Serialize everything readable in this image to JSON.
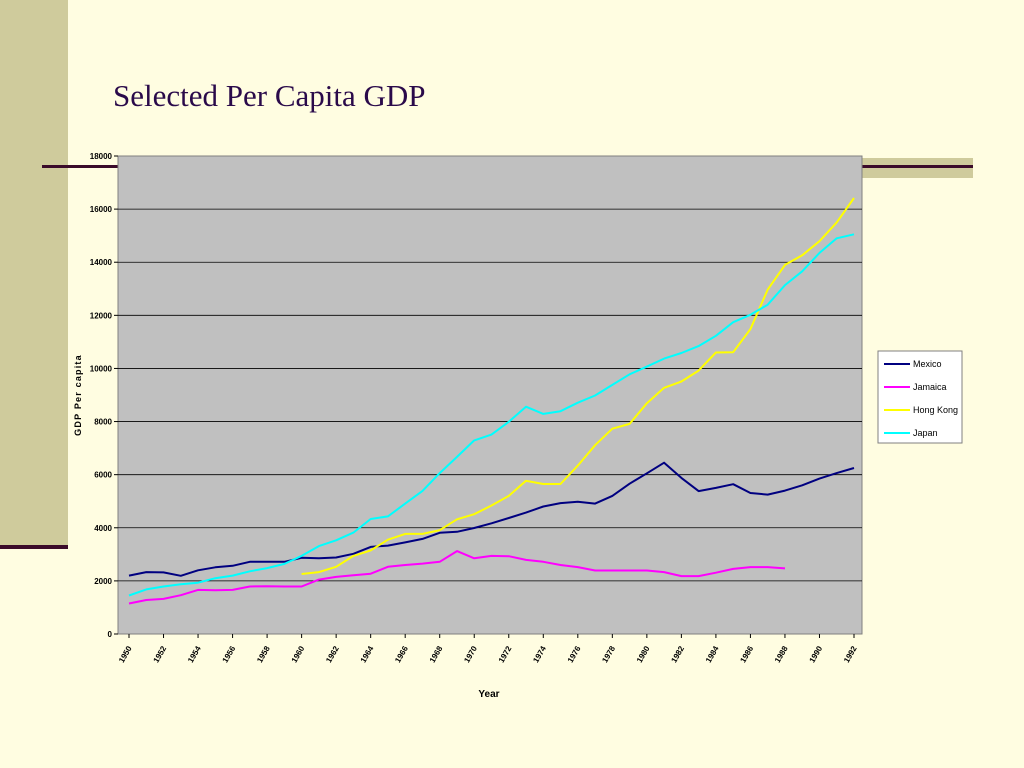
{
  "slide": {
    "title": "Selected Per Capita GDP"
  },
  "chart_data": {
    "type": "line",
    "title": "",
    "xlabel": "Year",
    "ylabel": "GDP Per capita",
    "ylim": [
      0,
      18000
    ],
    "yticks": [
      "0",
      "2000",
      "4000",
      "6000",
      "8000",
      "10000",
      "12000",
      "14000",
      "16000",
      "18000"
    ],
    "x": [
      1950,
      1951,
      1952,
      1953,
      1954,
      1955,
      1956,
      1957,
      1958,
      1959,
      1960,
      1961,
      1962,
      1963,
      1964,
      1965,
      1966,
      1967,
      1968,
      1969,
      1970,
      1971,
      1972,
      1973,
      1974,
      1975,
      1976,
      1977,
      1978,
      1979,
      1980,
      1981,
      1982,
      1983,
      1984,
      1985,
      1986,
      1987,
      1988,
      1989,
      1990,
      1991,
      1992
    ],
    "xtick_labels": [
      "1950",
      "1952",
      "1954",
      "1956",
      "1958",
      "1960",
      "1962",
      "1964",
      "1966",
      "1968",
      "1970",
      "1972",
      "1974",
      "1976",
      "1978",
      "1980",
      "1982",
      "1984",
      "1986",
      "1988",
      "1990",
      "1992"
    ],
    "grid": true,
    "legend_position": "right",
    "plot_background": "#c0c0c0",
    "series": [
      {
        "name": "Mexico",
        "color": "#000080",
        "values": [
          2200,
          2330,
          2320,
          2190,
          2400,
          2510,
          2570,
          2720,
          2720,
          2720,
          2870,
          2850,
          2880,
          3020,
          3280,
          3330,
          3450,
          3580,
          3810,
          3850,
          3990,
          4170,
          4370,
          4570,
          4800,
          4930,
          4980,
          4910,
          5200,
          5660,
          6050,
          6450,
          5880,
          5380,
          5500,
          5640,
          5310,
          5250,
          5400,
          5600,
          5850,
          6060,
          6250
        ]
      },
      {
        "name": "Jamaica",
        "color": "#ff00ff",
        "values": [
          1150,
          1280,
          1320,
          1460,
          1660,
          1650,
          1660,
          1790,
          1800,
          1790,
          1790,
          2050,
          2150,
          2210,
          2270,
          2530,
          2600,
          2650,
          2720,
          3120,
          2850,
          2940,
          2930,
          2790,
          2720,
          2600,
          2520,
          2390,
          2390,
          2390,
          2390,
          2330,
          2180,
          2180,
          2310,
          2450,
          2520,
          2520,
          2470,
          null,
          null,
          null,
          null
        ]
      },
      {
        "name": "Hong Kong",
        "color": "#ffff00",
        "values": [
          null,
          null,
          null,
          null,
          null,
          null,
          null,
          null,
          null,
          null,
          2260,
          2330,
          2530,
          2940,
          3150,
          3550,
          3770,
          3770,
          3910,
          4320,
          4510,
          4840,
          5200,
          5770,
          5650,
          5650,
          6340,
          7110,
          7730,
          7910,
          8690,
          9270,
          9510,
          9920,
          10600,
          10610,
          11480,
          12970,
          13900,
          14260,
          14790,
          15500,
          16420
        ]
      },
      {
        "name": "Japan",
        "color": "#00ffff",
        "values": [
          1450,
          1680,
          1790,
          1870,
          1930,
          2100,
          2200,
          2360,
          2480,
          2640,
          2940,
          3310,
          3530,
          3820,
          4330,
          4430,
          4910,
          5390,
          6060,
          6670,
          7290,
          7510,
          7990,
          8560,
          8290,
          8390,
          8710,
          8980,
          9380,
          9780,
          10070,
          10370,
          10580,
          10840,
          11230,
          11740,
          12020,
          12400,
          13140,
          13660,
          14350,
          14900,
          15050
        ]
      }
    ]
  }
}
